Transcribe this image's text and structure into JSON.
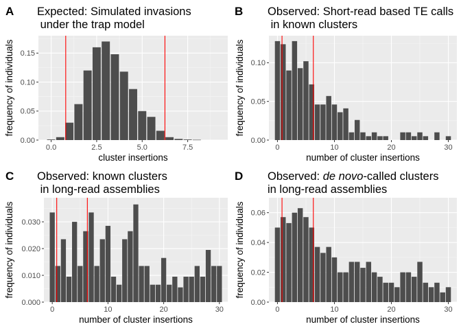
{
  "chart_data": [
    {
      "panel_letter": "A",
      "type": "bar",
      "title_lines": [
        "Expected: Simulated invasions",
        " under the trap model"
      ],
      "xlabel": "cluster insertions",
      "ylabel": "frequency of individuals",
      "xlim": [
        -0.7,
        9.7
      ],
      "ylim": [
        0,
        0.18
      ],
      "xticks": [
        0,
        2.5,
        5,
        7.5
      ],
      "xtick_labels": [
        "0.0",
        "2.5",
        "5.0",
        "7.5"
      ],
      "yticks": [
        0,
        0.05,
        0.1,
        0.15
      ],
      "ytick_labels": [
        "0.00",
        "0.05",
        "0.10",
        "0.15"
      ],
      "bar_width": 0.45,
      "x": [
        0,
        0.5,
        1.0,
        1.5,
        2.0,
        2.5,
        3.0,
        3.5,
        4.0,
        4.5,
        5.0,
        5.5,
        6.0,
        6.5,
        7.0,
        7.5,
        8.0
      ],
      "values": [
        0.001,
        0.005,
        0.03,
        0.062,
        0.12,
        0.16,
        0.17,
        0.148,
        0.118,
        0.088,
        0.05,
        0.04,
        0.016,
        0.005,
        0.002,
        0.001,
        0.0005
      ],
      "vlines": [
        0.8,
        6.25
      ],
      "bar_color": "#4d4d4d",
      "vline_color": "#ff0000"
    },
    {
      "panel_letter": "B",
      "type": "bar",
      "title_lines": [
        "Observed: Short-read based TE calls",
        " in known clusters"
      ],
      "xlabel": "number of cluster insertions",
      "ylabel": "frequency of individuals",
      "xlim": [
        -1.5,
        31.5
      ],
      "ylim": [
        0,
        0.135
      ],
      "xticks": [
        0,
        10,
        20,
        30
      ],
      "xtick_labels": [
        "0",
        "10",
        "20",
        "30"
      ],
      "yticks": [
        0,
        0.05,
        0.1
      ],
      "ytick_labels": [
        "0.00",
        "0.05",
        "0.10"
      ],
      "bar_width": 0.9,
      "x": [
        0,
        1,
        2,
        3,
        4,
        5,
        6,
        7,
        8,
        9,
        10,
        11,
        12,
        13,
        14,
        15,
        16,
        17,
        18,
        19,
        20,
        21,
        22,
        23,
        24,
        25,
        26,
        27,
        28,
        29,
        30
      ],
      "values": [
        0.128,
        0.124,
        0.09,
        0.128,
        0.093,
        0.102,
        0.072,
        0.046,
        0.046,
        0.057,
        0.046,
        0.036,
        0.041,
        0.01,
        0.026,
        0.01,
        0.005,
        0.01,
        0.005,
        0.005,
        0.0,
        0.0,
        0.01,
        0.01,
        0.005,
        0.01,
        0.005,
        0.0,
        0.01,
        0.0,
        0.005
      ],
      "vlines": [
        0.8,
        6.3
      ],
      "bar_color": "#4d4d4d",
      "vline_color": "#ff0000"
    },
    {
      "panel_letter": "C",
      "type": "bar",
      "title_lines": [
        "Observed: known clusters",
        " in long-read assemblies"
      ],
      "xlabel": "number of cluster insertions",
      "ylabel": "frequency of individuals",
      "xlim": [
        -1.5,
        31.5
      ],
      "ylim": [
        0,
        0.039
      ],
      "xticks": [
        0,
        10,
        20,
        30
      ],
      "xtick_labels": [
        "0",
        "10",
        "20",
        "30"
      ],
      "yticks": [
        0,
        0.01,
        0.02,
        0.03
      ],
      "ytick_labels": [
        "0.000",
        "0.010",
        "0.020",
        "0.030"
      ],
      "bar_width": 0.9,
      "x": [
        0,
        1,
        2,
        3,
        4,
        5,
        6,
        7,
        8,
        9,
        10,
        11,
        12,
        13,
        14,
        15,
        16,
        17,
        18,
        19,
        20,
        21,
        22,
        23,
        24,
        25,
        26,
        27,
        28,
        29,
        30
      ],
      "values": [
        0.0335,
        0.0135,
        0.0235,
        0.0095,
        0.03,
        0.0135,
        0.0265,
        0.0335,
        0.0135,
        0.0235,
        0.0285,
        0.0095,
        0.0065,
        0.0235,
        0.0265,
        0.0365,
        0.0135,
        0.0135,
        0.0065,
        0.0065,
        0.0165,
        0.0065,
        0.0095,
        0.0055,
        0.0095,
        0.0095,
        0.0135,
        0.0095,
        0.0195,
        0.0135,
        0.0135
      ],
      "vlines": [
        0.8,
        6.3
      ],
      "bar_color": "#4d4d4d",
      "vline_color": "#ff0000"
    },
    {
      "panel_letter": "D",
      "type": "bar",
      "title_lines": [
        "Observed: de novo-called clusters",
        "in long-read assemblies"
      ],
      "xlabel": "number of cluster insertions",
      "ylabel": "frequency of individuals",
      "xlim": [
        -1.5,
        31.5
      ],
      "ylim": [
        0,
        0.07
      ],
      "xticks": [
        0,
        10,
        20,
        30
      ],
      "xtick_labels": [
        "0",
        "10",
        "20",
        "30"
      ],
      "yticks": [
        0,
        0.02,
        0.04,
        0.06
      ],
      "ytick_labels": [
        "0.00",
        "0.02",
        "0.04",
        "0.06"
      ],
      "bar_width": 0.9,
      "x": [
        0,
        1,
        2,
        3,
        4,
        5,
        6,
        7,
        8,
        9,
        10,
        11,
        12,
        13,
        14,
        15,
        16,
        17,
        18,
        19,
        20,
        21,
        22,
        23,
        24,
        25,
        26,
        27,
        28,
        29,
        30
      ],
      "values": [
        0.05,
        0.057,
        0.053,
        0.06,
        0.063,
        0.057,
        0.05,
        0.037,
        0.033,
        0.037,
        0.03,
        0.02,
        0.02,
        0.027,
        0.027,
        0.023,
        0.027,
        0.02,
        0.017,
        0.013,
        0.013,
        0.01,
        0.02,
        0.02,
        0.017,
        0.027,
        0.013,
        0.01,
        0.013,
        0.0065,
        0.01
      ],
      "vlines": [
        0.8,
        6.3
      ],
      "bar_color": "#4d4d4d",
      "vline_color": "#ff0000"
    }
  ]
}
